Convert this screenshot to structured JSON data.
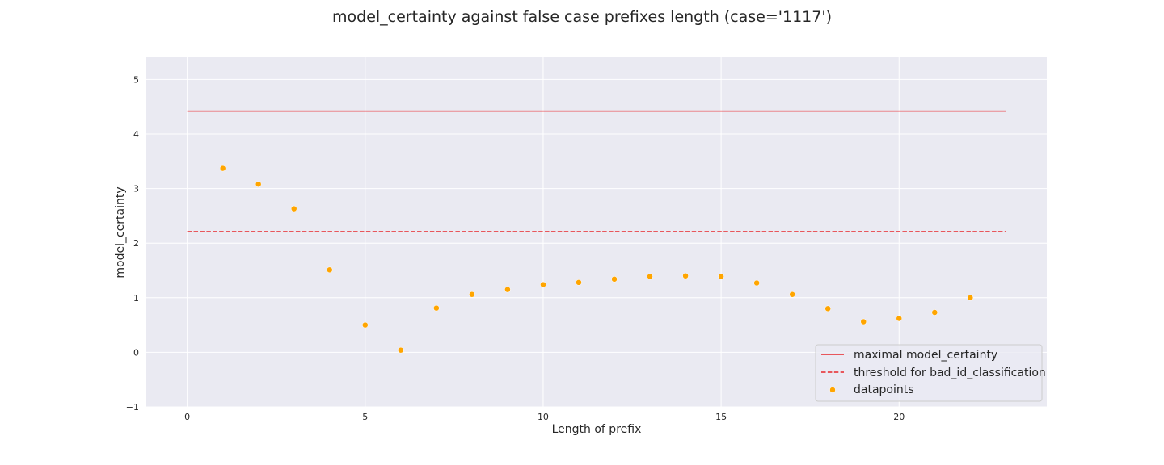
{
  "chart_data": {
    "type": "scatter",
    "title": "model_certainty against false case prefixes length (case='1117')",
    "xlabel": "Length of prefix",
    "ylabel": "model_certainty",
    "xlim": [
      -1.15,
      24.15
    ],
    "ylim": [
      -1,
      5.42
    ],
    "xticks": [
      0,
      5,
      10,
      15,
      20
    ],
    "yticks": [
      -1,
      0,
      1,
      2,
      3,
      4,
      5
    ],
    "grid": true,
    "legend_position": "lower-right",
    "colors": {
      "background": "#eaeaf2",
      "grid": "#ffffff",
      "line": "#e8262a",
      "points": "#ffa500"
    },
    "lines": [
      {
        "name": "maximal model_certainty",
        "style": "solid",
        "x": [
          0,
          23
        ],
        "y": [
          4.42,
          4.42
        ]
      },
      {
        "name": "threshold for bad_id_classification",
        "style": "dashed",
        "x": [
          0,
          23
        ],
        "y": [
          2.21,
          2.21
        ]
      }
    ],
    "series": [
      {
        "name": "datapoints",
        "x": [
          1,
          2,
          3,
          4,
          5,
          6,
          7,
          8,
          9,
          10,
          11,
          12,
          13,
          14,
          15,
          16,
          17,
          18,
          19,
          20,
          21,
          22
        ],
        "y": [
          3.37,
          3.08,
          2.63,
          1.51,
          0.5,
          0.04,
          0.81,
          1.06,
          1.15,
          1.24,
          1.28,
          1.34,
          1.39,
          1.4,
          1.39,
          1.27,
          1.06,
          0.8,
          0.56,
          0.62,
          0.73,
          1.0
        ]
      }
    ]
  }
}
